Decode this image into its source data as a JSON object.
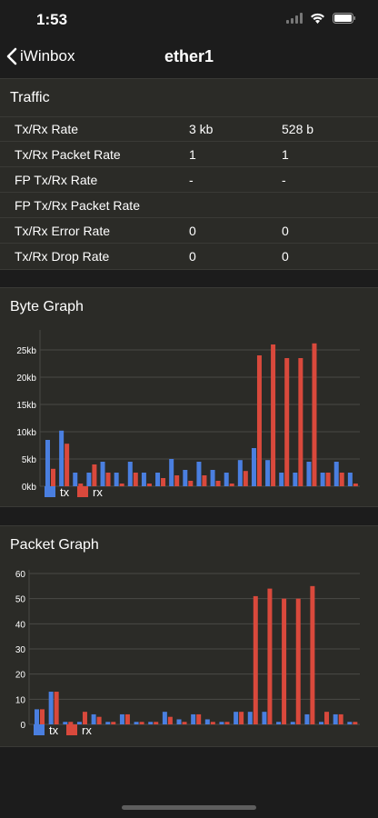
{
  "status": {
    "time": "1:53"
  },
  "nav": {
    "back_label": "iWinbox",
    "title": "ether1"
  },
  "traffic": {
    "title": "Traffic",
    "rows": [
      {
        "label": "Tx/Rx Rate",
        "v1": "3 kb",
        "v2": "528 b"
      },
      {
        "label": "Tx/Rx Packet Rate",
        "v1": "1",
        "v2": "1"
      },
      {
        "label": "FP Tx/Rx Rate",
        "v1": "-",
        "v2": "-"
      },
      {
        "label": "FP Tx/Rx Packet Rate",
        "v1": "",
        "v2": ""
      },
      {
        "label": "Tx/Rx Error Rate",
        "v1": "0",
        "v2": "0"
      },
      {
        "label": "Tx/Rx Drop Rate",
        "v1": "0",
        "v2": "0"
      }
    ]
  },
  "colors": {
    "tx": "#4a7fe0",
    "rx": "#d9493c",
    "grid": "#4a4a46",
    "background": "#2b2b27"
  },
  "chart_data": [
    {
      "type": "bar",
      "title": "Byte Graph",
      "ylim": [
        0,
        28
      ],
      "yticks": [
        0,
        5,
        10,
        15,
        20,
        25
      ],
      "ytick_labels": [
        "0kb",
        "5kb",
        "10kb",
        "15kb",
        "20kb",
        "25kb"
      ],
      "grid": true,
      "legend": "bottom-left",
      "series": [
        {
          "name": "tx",
          "values": [
            8.5,
            10.2,
            2.5,
            2.5,
            4.5,
            2.5,
            4.5,
            2.5,
            2.5,
            5.0,
            3.0,
            4.5,
            3.0,
            2.5,
            4.8,
            7.0,
            4.8,
            2.5,
            2.5,
            4.5,
            2.5,
            4.5,
            2.5
          ]
        },
        {
          "name": "rx",
          "values": [
            3.2,
            7.8,
            0.5,
            4.0,
            2.5,
            0.5,
            2.5,
            0.5,
            1.5,
            2.0,
            1.0,
            2.0,
            1.0,
            0.5,
            2.8,
            24.0,
            26.0,
            23.5,
            23.5,
            26.2,
            2.5,
            2.5,
            0.5
          ]
        }
      ]
    },
    {
      "type": "bar",
      "title": "Packet Graph",
      "ylim": [
        0,
        60
      ],
      "yticks": [
        0,
        10,
        20,
        30,
        40,
        50,
        60
      ],
      "ytick_labels": [
        "0",
        "10",
        "20",
        "30",
        "40",
        "50",
        "60"
      ],
      "grid": true,
      "legend": "bottom-left",
      "series": [
        {
          "name": "tx",
          "values": [
            6,
            13,
            1,
            1,
            4,
            1,
            4,
            1,
            1,
            5,
            2,
            4,
            2,
            1,
            5,
            5,
            5,
            1,
            1,
            4,
            1,
            4,
            1
          ]
        },
        {
          "name": "rx",
          "values": [
            6,
            13,
            1,
            5,
            3,
            1,
            4,
            1,
            1,
            3,
            1,
            4,
            1,
            1,
            5,
            51,
            54,
            50,
            50,
            55,
            5,
            4,
            1
          ]
        }
      ]
    }
  ]
}
